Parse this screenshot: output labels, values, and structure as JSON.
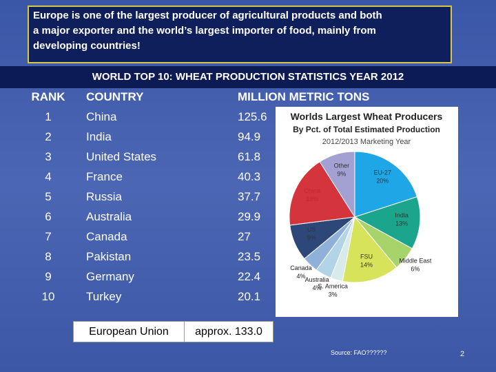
{
  "header": {
    "lines": [
      "Europe is one of the largest producer of agricultural products and both",
      "a major exporter and the world’s largest importer of food, mainly from",
      "developing countries!"
    ]
  },
  "table": {
    "title": "WORLD TOP 10: WHEAT PRODUCTION STATISTICS YEAR 2012",
    "columns": [
      "RANK",
      "COUNTRY",
      "MILLION METRIC TONS"
    ],
    "rows": [
      [
        "1",
        "China",
        "125.6"
      ],
      [
        "2",
        "India",
        "94.9"
      ],
      [
        "3",
        "United States",
        "61.8"
      ],
      [
        "4",
        "France",
        "40.3"
      ],
      [
        "5",
        "Russia",
        "37.7"
      ],
      [
        "6",
        "Australia",
        "29.9"
      ],
      [
        "7",
        "Canada",
        "27"
      ],
      [
        "8",
        "Pakistan",
        "23.5"
      ],
      [
        "9",
        "Germany",
        "22.4"
      ],
      [
        "10",
        "Turkey",
        "20.1"
      ]
    ]
  },
  "summary": {
    "label": "European Union",
    "value": "approx.  133.0"
  },
  "chart_data": {
    "type": "pie",
    "title": "Worlds Largest Wheat Producers",
    "subtitle": "By Pct. of Total Estimated Production",
    "period": "2012/2013 Marketing Year",
    "categories": [
      "EU-27",
      "India",
      "Middle East",
      "FSU",
      "S. America",
      "Australia",
      "Canada",
      "US",
      "China",
      "Other"
    ],
    "values": [
      20,
      13,
      6,
      14,
      3,
      4,
      4,
      9,
      18,
      9
    ],
    "value_labels": [
      "20%",
      "13%",
      "6%",
      "14%",
      "3%",
      "4%",
      "4%",
      "9%",
      "18%",
      "9%"
    ],
    "colors": [
      "#1ea6e6",
      "#1aa58c",
      "#a6d36a",
      "#d7e35a",
      "#d9eaea",
      "#b3d4e6",
      "#8fb0d8",
      "#2d4878",
      "#d4343c",
      "#a3a0d2"
    ]
  },
  "footer": {
    "source": "Source: FAO??????",
    "page": "2"
  }
}
